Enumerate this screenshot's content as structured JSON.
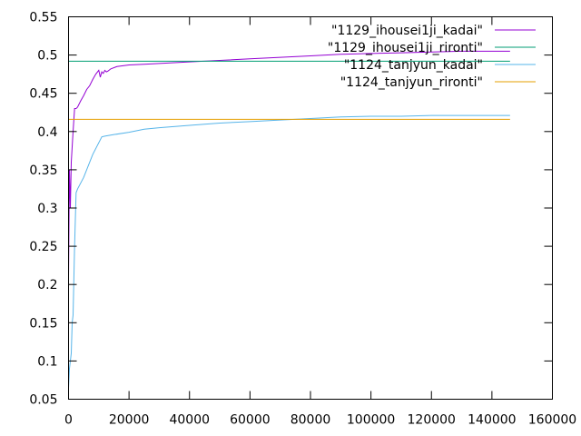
{
  "chart_data": {
    "type": "line",
    "title": "",
    "xlabel": "",
    "ylabel": "",
    "xlim": [
      0,
      160000
    ],
    "ylim": [
      0.05,
      0.55
    ],
    "xticks": [
      0,
      20000,
      40000,
      60000,
      80000,
      100000,
      120000,
      140000,
      160000
    ],
    "xtick_labels": [
      "0",
      "20000",
      "40000",
      "60000",
      "80000",
      "100000",
      "120000",
      "140000",
      "160000"
    ],
    "yticks": [
      0.05,
      0.1,
      0.15,
      0.2,
      0.25,
      0.3,
      0.35,
      0.4,
      0.45,
      0.5,
      0.55
    ],
    "ytick_labels": [
      "0.05",
      "0.1",
      "0.15",
      "0.2",
      "0.25",
      "0.3",
      "0.35",
      "0.4",
      "0.45",
      "0.5",
      "0.55"
    ],
    "grid": false,
    "legend_position": "top-right",
    "series": [
      {
        "name": "\"1129_ihousei1ji_kadai\"",
        "color": "#9400d3",
        "x": [
          0,
          300,
          600,
          900,
          1200,
          1500,
          2000,
          2500,
          3000,
          4000,
          5000,
          6000,
          7000,
          8000,
          9000,
          10000,
          10500,
          11000,
          11500,
          12000,
          12500,
          13000,
          14000,
          16000,
          18000,
          20000,
          25000,
          30000,
          40000,
          50000,
          60000,
          70000,
          80000,
          90000,
          100000,
          110000,
          120000,
          130000,
          140000,
          146000
        ],
        "y": [
          0.21,
          0.35,
          0.3,
          0.36,
          0.38,
          0.4,
          0.43,
          0.43,
          0.432,
          0.44,
          0.447,
          0.455,
          0.46,
          0.468,
          0.475,
          0.48,
          0.471,
          0.478,
          0.476,
          0.48,
          0.478,
          0.479,
          0.482,
          0.485,
          0.486,
          0.487,
          0.488,
          0.489,
          0.491,
          0.493,
          0.495,
          0.497,
          0.499,
          0.501,
          0.502,
          0.503,
          0.504,
          0.505,
          0.505,
          0.505
        ]
      },
      {
        "name": "\"1129_ihousei1ji_rironti\"",
        "color": "#009e73",
        "x": [
          0,
          146000
        ],
        "y": [
          0.492,
          0.492
        ]
      },
      {
        "name": "\"1124_tanjyun_kadai\"",
        "color": "#56b4e9",
        "x": [
          0,
          300,
          600,
          900,
          1200,
          1500,
          2000,
          2500,
          3000,
          5000,
          8000,
          11000,
          12000,
          15000,
          20000,
          25000,
          30000,
          40000,
          50000,
          60000,
          70000,
          80000,
          90000,
          100000,
          110000,
          120000,
          130000,
          140000,
          146000
        ],
        "y": [
          0.065,
          0.09,
          0.1,
          0.11,
          0.15,
          0.16,
          0.25,
          0.32,
          0.325,
          0.34,
          0.37,
          0.393,
          0.394,
          0.396,
          0.399,
          0.403,
          0.405,
          0.408,
          0.411,
          0.413,
          0.415,
          0.417,
          0.419,
          0.42,
          0.42,
          0.421,
          0.421,
          0.421,
          0.421
        ]
      },
      {
        "name": "\"1124_tanjyun_rironti\"",
        "color": "#e69f00",
        "x": [
          0,
          146000
        ],
        "y": [
          0.416,
          0.416
        ]
      }
    ]
  }
}
